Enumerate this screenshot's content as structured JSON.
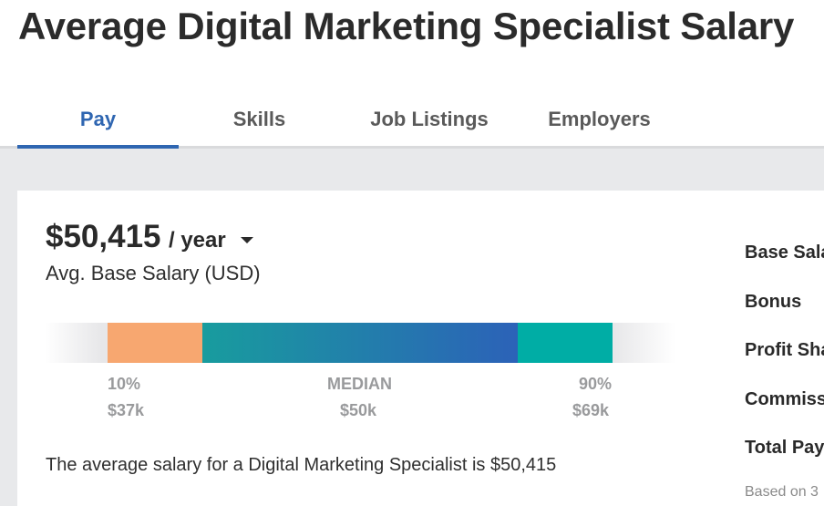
{
  "header": {
    "title": "Average Digital Marketing Specialist Salary"
  },
  "tabs": [
    {
      "label": "Pay",
      "active": true
    },
    {
      "label": "Skills",
      "active": false
    },
    {
      "label": "Job Listings",
      "active": false
    },
    {
      "label": "Employers",
      "active": false
    }
  ],
  "salary": {
    "amount": "$50,415",
    "period": "/ year",
    "caption": "Avg. Base Salary (USD)"
  },
  "distribution": {
    "low_label": "10%",
    "low_value": "$37k",
    "median_label": "MEDIAN",
    "median_value": "$50k",
    "high_label": "90%",
    "high_value": "$69k",
    "colors": {
      "low": "#f7a770",
      "mid_start": "#189c9e",
      "mid_end": "#2c62b8",
      "high": "#00ada5"
    }
  },
  "summary_text": "The average salary for a Digital Marketing Specialist is $50,415",
  "breakdown": {
    "items": [
      "Base Sala",
      "Bonus",
      "Profit Sha",
      "Commiss",
      "Total Pay"
    ],
    "note": "Based on 3"
  },
  "theme": {
    "accent": "#2f66b1",
    "band": "#e8e9eb"
  },
  "icons": {
    "period_dropdown": "caret-down-icon"
  }
}
